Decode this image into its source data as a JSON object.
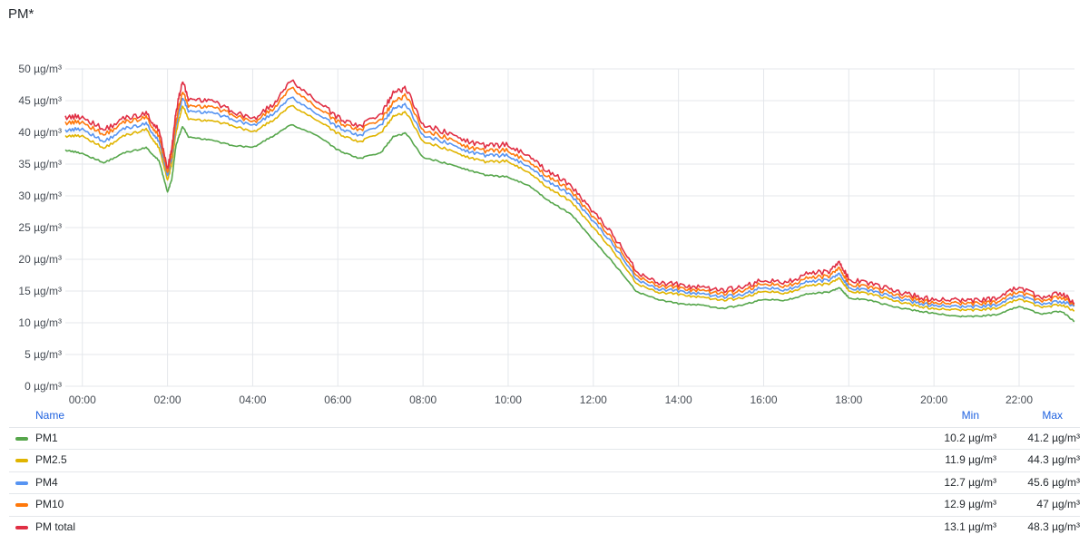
{
  "panel": {
    "title": "PM*"
  },
  "chart_data": {
    "type": "line",
    "unit": "µg/m³",
    "ylim": [
      0,
      50
    ],
    "yticks": [
      "0 µg/m³",
      "5 µg/m³",
      "10 µg/m³",
      "15 µg/m³",
      "20 µg/m³",
      "25 µg/m³",
      "30 µg/m³",
      "35 µg/m³",
      "40 µg/m³",
      "45 µg/m³",
      "50 µg/m³"
    ],
    "xlim": [
      -0.4,
      23.3
    ],
    "xticks": [
      "00:00",
      "02:00",
      "04:00",
      "06:00",
      "08:00",
      "10:00",
      "12:00",
      "14:00",
      "16:00",
      "18:00",
      "20:00",
      "22:00"
    ],
    "grid": true,
    "x": [
      -0.4,
      0,
      0.5,
      1,
      1.5,
      1.8,
      2,
      2.1,
      2.2,
      2.35,
      2.5,
      3,
      3.5,
      4,
      4.5,
      4.9,
      5.5,
      6,
      6.5,
      7,
      7.3,
      7.6,
      8,
      8.5,
      9,
      9.5,
      10,
      10.5,
      11,
      11.5,
      12,
      12.5,
      13,
      13.5,
      14,
      14.5,
      15,
      15.5,
      16,
      16.5,
      17,
      17.5,
      17.8,
      18,
      18.5,
      19,
      19.5,
      20,
      20.5,
      21,
      21.5,
      22,
      22.5,
      23,
      23.3
    ],
    "series": [
      {
        "name": "PM1",
        "color": "#56a64b",
        "values": [
          37.2,
          36.7,
          35.2,
          36.8,
          37.6,
          35.5,
          30.6,
          32.6,
          38,
          41,
          39.2,
          38.8,
          38,
          37.6,
          39.5,
          41.2,
          39.6,
          37.2,
          35.9,
          36.7,
          39.3,
          39.9,
          36.1,
          35.2,
          34.2,
          33.2,
          33,
          31.5,
          29,
          27,
          23,
          19.2,
          15,
          13.7,
          13,
          12.8,
          12.2,
          12.8,
          13.7,
          13.5,
          14.5,
          14.8,
          15.5,
          13.9,
          13.5,
          12.6,
          12,
          11.5,
          11,
          11,
          11.3,
          12.6,
          11.4,
          11.8,
          10.2
        ]
      },
      {
        "name": "PM2.5",
        "color": "#e0b400",
        "values": [
          39.4,
          39.5,
          37.5,
          39.5,
          40.5,
          37.5,
          32.5,
          35,
          40,
          44.3,
          42,
          41.8,
          41.2,
          40,
          42,
          44.2,
          42,
          39.8,
          38.5,
          39.8,
          42.5,
          43.2,
          38.6,
          37.5,
          36.2,
          35.3,
          35.5,
          33.5,
          31,
          29,
          25,
          21,
          16.3,
          14.8,
          14.5,
          14,
          13.5,
          13.9,
          15,
          14.6,
          15.8,
          16.1,
          17,
          15,
          14.5,
          13.6,
          12.8,
          12.2,
          12,
          12,
          12.3,
          13.8,
          12.5,
          12.8,
          11.9
        ]
      },
      {
        "name": "PM4",
        "color": "#5794f2",
        "values": [
          40.3,
          40.6,
          38.5,
          40.6,
          41.4,
          38.5,
          33.2,
          36,
          41,
          45.6,
          43.2,
          43.1,
          42.2,
          41,
          43,
          45.5,
          43,
          40.8,
          39.5,
          41,
          43.7,
          44.4,
          39.6,
          38.5,
          37.1,
          36.3,
          36.4,
          34.4,
          32,
          30,
          26,
          22,
          17,
          15.3,
          15,
          14.5,
          14,
          14.4,
          15.6,
          15.1,
          16.4,
          16.7,
          17.7,
          15.5,
          15,
          14.1,
          13.3,
          12.7,
          12.5,
          12.5,
          12.8,
          14.4,
          13,
          13.3,
          12.7
        ]
      },
      {
        "name": "PM10",
        "color": "#ff780a",
        "values": [
          41.5,
          41.7,
          39.6,
          41.6,
          42.4,
          39.3,
          33.7,
          36.6,
          41.8,
          46.6,
          44,
          44,
          43,
          41.5,
          43.8,
          47,
          44,
          41.6,
          40.4,
          41.8,
          44.7,
          45.9,
          40.4,
          39.3,
          37.8,
          37,
          37.2,
          35.1,
          32.8,
          30.7,
          26.7,
          22.7,
          17.6,
          15.8,
          15.5,
          15,
          14.5,
          15,
          16.2,
          15.7,
          17,
          17.3,
          18.6,
          16.1,
          15.5,
          14.6,
          13.8,
          13.1,
          13,
          13,
          13.3,
          15,
          13.5,
          14,
          12.9
        ]
      },
      {
        "name": "PM total",
        "color": "#e02f44",
        "values": [
          42.4,
          42.5,
          40.4,
          42.2,
          43,
          40.2,
          34.3,
          37.5,
          43.2,
          48.3,
          45,
          45,
          43.5,
          42,
          44.5,
          48.1,
          45,
          42.3,
          41,
          42.6,
          46.2,
          47,
          41.3,
          40.1,
          38.7,
          37.8,
          38.1,
          36,
          33.6,
          31.5,
          27.5,
          23.5,
          18.2,
          16.3,
          16,
          15.5,
          15,
          15.6,
          16.7,
          16.3,
          17.7,
          18,
          19.5,
          16.8,
          16.1,
          15.2,
          14.3,
          13.6,
          13.5,
          13.5,
          13.9,
          15.7,
          14,
          14.6,
          13.1
        ]
      }
    ]
  },
  "legend": {
    "header": {
      "name": "Name",
      "min": "Min",
      "max": "Max"
    },
    "rows": [
      {
        "name": "PM1",
        "min": "10.2 µg/m³",
        "max": "41.2 µg/m³"
      },
      {
        "name": "PM2.5",
        "min": "11.9 µg/m³",
        "max": "44.3 µg/m³"
      },
      {
        "name": "PM4",
        "min": "12.7 µg/m³",
        "max": "45.6 µg/m³"
      },
      {
        "name": "PM10",
        "min": "12.9 µg/m³",
        "max": "47 µg/m³"
      },
      {
        "name": "PM total",
        "min": "13.1 µg/m³",
        "max": "48.3 µg/m³"
      }
    ]
  }
}
